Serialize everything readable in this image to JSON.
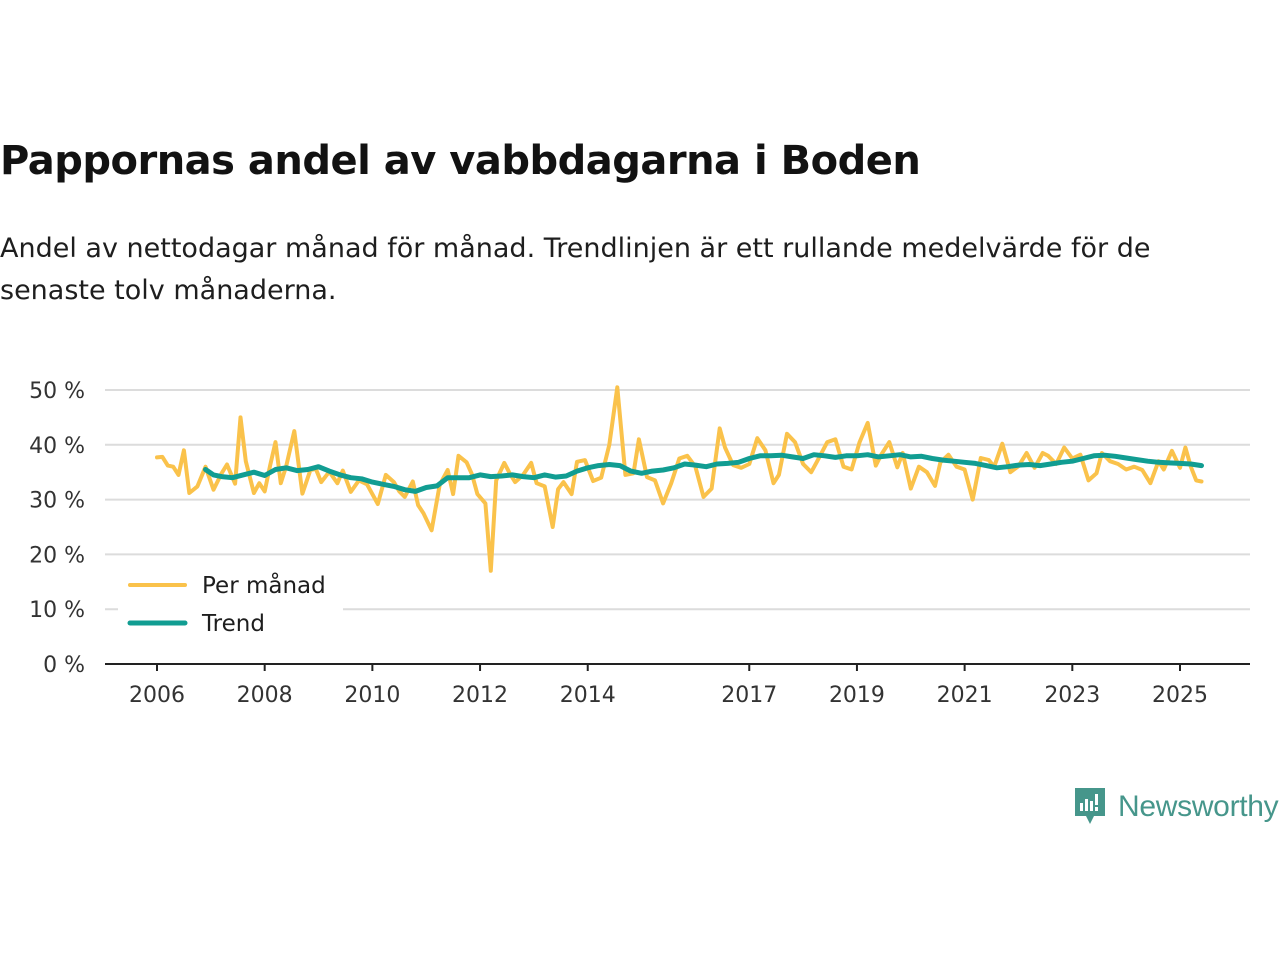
{
  "title": "Pappornas andel av vabbdagarna i Boden",
  "subtitle": "Andel av nettodagar månad för månad. Trendlinjen är ett rullande medelvärde för de senaste tolv månaderna.",
  "brand": {
    "name": "Newsworthy",
    "icon": "newsworthy-logo-icon"
  },
  "colors": {
    "monthly": "#fac24b",
    "trend": "#119d92",
    "grid": "#dcdcdc",
    "axis": "#222222",
    "brand": "#46968b"
  },
  "chart_data": {
    "type": "line",
    "title": "Pappornas andel av vabbdagarna i Boden",
    "xlabel": "",
    "ylabel": "",
    "xlim": [
      2006,
      2025.5
    ],
    "ylim": [
      0,
      50
    ],
    "y_ticks": [
      0,
      10,
      20,
      30,
      40,
      50
    ],
    "y_tick_labels": [
      "0 %",
      "10 %",
      "20 %",
      "30 %",
      "40 %",
      "50 %"
    ],
    "x_ticks": [
      2006,
      2008,
      2010,
      2012,
      2014,
      2017,
      2019,
      2021,
      2023,
      2025
    ],
    "x_tick_labels": [
      "2006",
      "2008",
      "2010",
      "2012",
      "2014",
      "2017",
      "2019",
      "2021",
      "2023",
      "2025"
    ],
    "grid": true,
    "legend_position": "bottom-left",
    "series": [
      {
        "name": "Per månad",
        "x": [
          2006.0,
          2006.1,
          2006.2,
          2006.3,
          2006.4,
          2006.5,
          2006.6,
          2006.75,
          2006.9,
          2007.05,
          2007.2,
          2007.3,
          2007.45,
          2007.55,
          2007.65,
          2007.8,
          2007.9,
          2008.0,
          2008.1,
          2008.2,
          2008.3,
          2008.4,
          2008.55,
          2008.7,
          2008.85,
          2008.95,
          2009.05,
          2009.2,
          2009.35,
          2009.45,
          2009.6,
          2009.75,
          2009.9,
          2010.1,
          2010.25,
          2010.4,
          2010.5,
          2010.6,
          2010.75,
          2010.85,
          2010.95,
          2011.1,
          2011.25,
          2011.4,
          2011.5,
          2011.6,
          2011.75,
          2011.85,
          2011.95,
          2012.1,
          2012.2,
          2012.3,
          2012.45,
          2012.55,
          2012.65,
          2012.8,
          2012.95,
          2013.05,
          2013.2,
          2013.35,
          2013.45,
          2013.55,
          2013.7,
          2013.8,
          2013.95,
          2014.1,
          2014.25,
          2014.4,
          2014.55,
          2014.7,
          2014.85,
          2014.95,
          2015.1,
          2015.25,
          2015.4,
          2015.55,
          2015.7,
          2015.85,
          2016.0,
          2016.15,
          2016.3,
          2016.45,
          2016.55,
          2016.7,
          2016.85,
          2017.0,
          2017.15,
          2017.3,
          2017.45,
          2017.55,
          2017.7,
          2017.85,
          2018.0,
          2018.15,
          2018.25,
          2018.45,
          2018.6,
          2018.75,
          2018.9,
          2019.05,
          2019.2,
          2019.35,
          2019.45,
          2019.6,
          2019.75,
          2019.85,
          2020.0,
          2020.15,
          2020.3,
          2020.45,
          2020.55,
          2020.7,
          2020.85,
          2021.0,
          2021.15,
          2021.3,
          2021.45,
          2021.55,
          2021.7,
          2021.85,
          2022.0,
          2022.15,
          2022.3,
          2022.45,
          2022.55,
          2022.7,
          2022.85,
          2023.0,
          2023.15,
          2023.3,
          2023.45,
          2023.55,
          2023.7,
          2023.85,
          2024.0,
          2024.15,
          2024.3,
          2024.45,
          2024.6,
          2024.7,
          2024.85,
          2025.0,
          2025.1,
          2025.2,
          2025.3,
          2025.4
        ],
        "values": [
          37.7,
          37.8,
          36.2,
          36.0,
          34.5,
          39.0,
          31.2,
          32.4,
          36.0,
          31.8,
          34.8,
          36.4,
          32.9,
          45.0,
          37.0,
          31.2,
          33.0,
          31.5,
          36.2,
          40.5,
          33.0,
          36.1,
          42.5,
          31.1,
          35.4,
          35.6,
          33.2,
          35.1,
          33.0,
          35.3,
          31.4,
          33.5,
          32.8,
          29.2,
          34.5,
          33.2,
          31.5,
          30.5,
          33.3,
          29.0,
          27.5,
          24.4,
          32.7,
          35.4,
          31.0,
          38.0,
          36.8,
          34.6,
          31.0,
          29.3,
          17.0,
          33.5,
          36.7,
          34.8,
          33.2,
          34.5,
          36.7,
          33.0,
          32.4,
          25.0,
          31.9,
          33.2,
          31.0,
          36.9,
          37.2,
          33.4,
          34.0,
          40.0,
          50.5,
          34.5,
          34.8,
          41.0,
          34.1,
          33.5,
          29.3,
          33.0,
          37.5,
          38.0,
          36.0,
          30.5,
          32.0,
          43.0,
          39.5,
          36.3,
          35.8,
          36.5,
          41.2,
          39.0,
          33.0,
          34.5,
          42.0,
          40.5,
          36.5,
          35.0,
          36.8,
          40.5,
          41.0,
          36.0,
          35.5,
          40.5,
          44.0,
          36.2,
          38.2,
          40.5,
          35.9,
          38.5,
          32.0,
          36.0,
          35.0,
          32.5,
          36.8,
          38.2,
          36.0,
          35.5,
          30.0,
          37.6,
          37.2,
          36.0,
          40.2,
          35.0,
          36.1,
          38.5,
          35.8,
          38.5,
          38.0,
          36.5,
          39.5,
          37.5,
          38.2,
          33.5,
          34.8,
          38.5,
          37.0,
          36.5,
          35.5,
          36.0,
          35.4,
          33.0,
          37.0,
          35.5,
          38.9,
          35.8,
          39.5,
          36.0,
          33.5,
          33.3
        ]
      },
      {
        "name": "Trend",
        "x": [
          2006.9,
          2007.05,
          2007.2,
          2007.4,
          2007.6,
          2007.8,
          2008.0,
          2008.2,
          2008.4,
          2008.6,
          2008.8,
          2009.0,
          2009.2,
          2009.4,
          2009.6,
          2009.8,
          2010.0,
          2010.2,
          2010.4,
          2010.6,
          2010.8,
          2011.0,
          2011.2,
          2011.4,
          2011.6,
          2011.8,
          2012.0,
          2012.2,
          2012.4,
          2012.6,
          2012.8,
          2013.0,
          2013.2,
          2013.4,
          2013.6,
          2013.8,
          2014.0,
          2014.2,
          2014.4,
          2014.6,
          2014.8,
          2015.0,
          2015.2,
          2015.4,
          2015.6,
          2015.8,
          2016.0,
          2016.2,
          2016.4,
          2016.6,
          2016.8,
          2017.0,
          2017.2,
          2017.4,
          2017.6,
          2017.8,
          2018.0,
          2018.2,
          2018.4,
          2018.6,
          2018.8,
          2019.0,
          2019.2,
          2019.4,
          2019.6,
          2019.8,
          2020.0,
          2020.2,
          2020.4,
          2020.6,
          2020.8,
          2021.0,
          2021.2,
          2021.4,
          2021.6,
          2021.8,
          2022.0,
          2022.2,
          2022.4,
          2022.6,
          2022.8,
          2023.0,
          2023.2,
          2023.4,
          2023.6,
          2023.8,
          2024.0,
          2024.2,
          2024.4,
          2024.6,
          2024.8,
          2025.0,
          2025.2,
          2025.4
        ],
        "values": [
          35.5,
          34.5,
          34.2,
          34.0,
          34.5,
          35.0,
          34.4,
          35.5,
          35.8,
          35.3,
          35.5,
          36.0,
          35.2,
          34.5,
          34.0,
          33.8,
          33.2,
          32.8,
          32.4,
          31.8,
          31.5,
          32.2,
          32.5,
          34.0,
          34.0,
          34.0,
          34.5,
          34.2,
          34.3,
          34.5,
          34.2,
          34.0,
          34.5,
          34.1,
          34.3,
          35.2,
          35.8,
          36.2,
          36.4,
          36.2,
          35.2,
          34.8,
          35.2,
          35.4,
          35.8,
          36.5,
          36.3,
          36.0,
          36.5,
          36.6,
          36.8,
          37.5,
          38.0,
          38.0,
          38.1,
          37.8,
          37.5,
          38.2,
          38.0,
          37.7,
          38.0,
          38.0,
          38.2,
          37.8,
          38.0,
          38.2,
          37.8,
          37.9,
          37.5,
          37.2,
          37.0,
          36.8,
          36.6,
          36.2,
          35.8,
          36.0,
          36.3,
          36.4,
          36.2,
          36.5,
          36.8,
          37.0,
          37.5,
          38.0,
          38.1,
          37.9,
          37.6,
          37.3,
          37.0,
          36.8,
          36.7,
          36.6,
          36.5,
          36.2
        ]
      }
    ]
  }
}
